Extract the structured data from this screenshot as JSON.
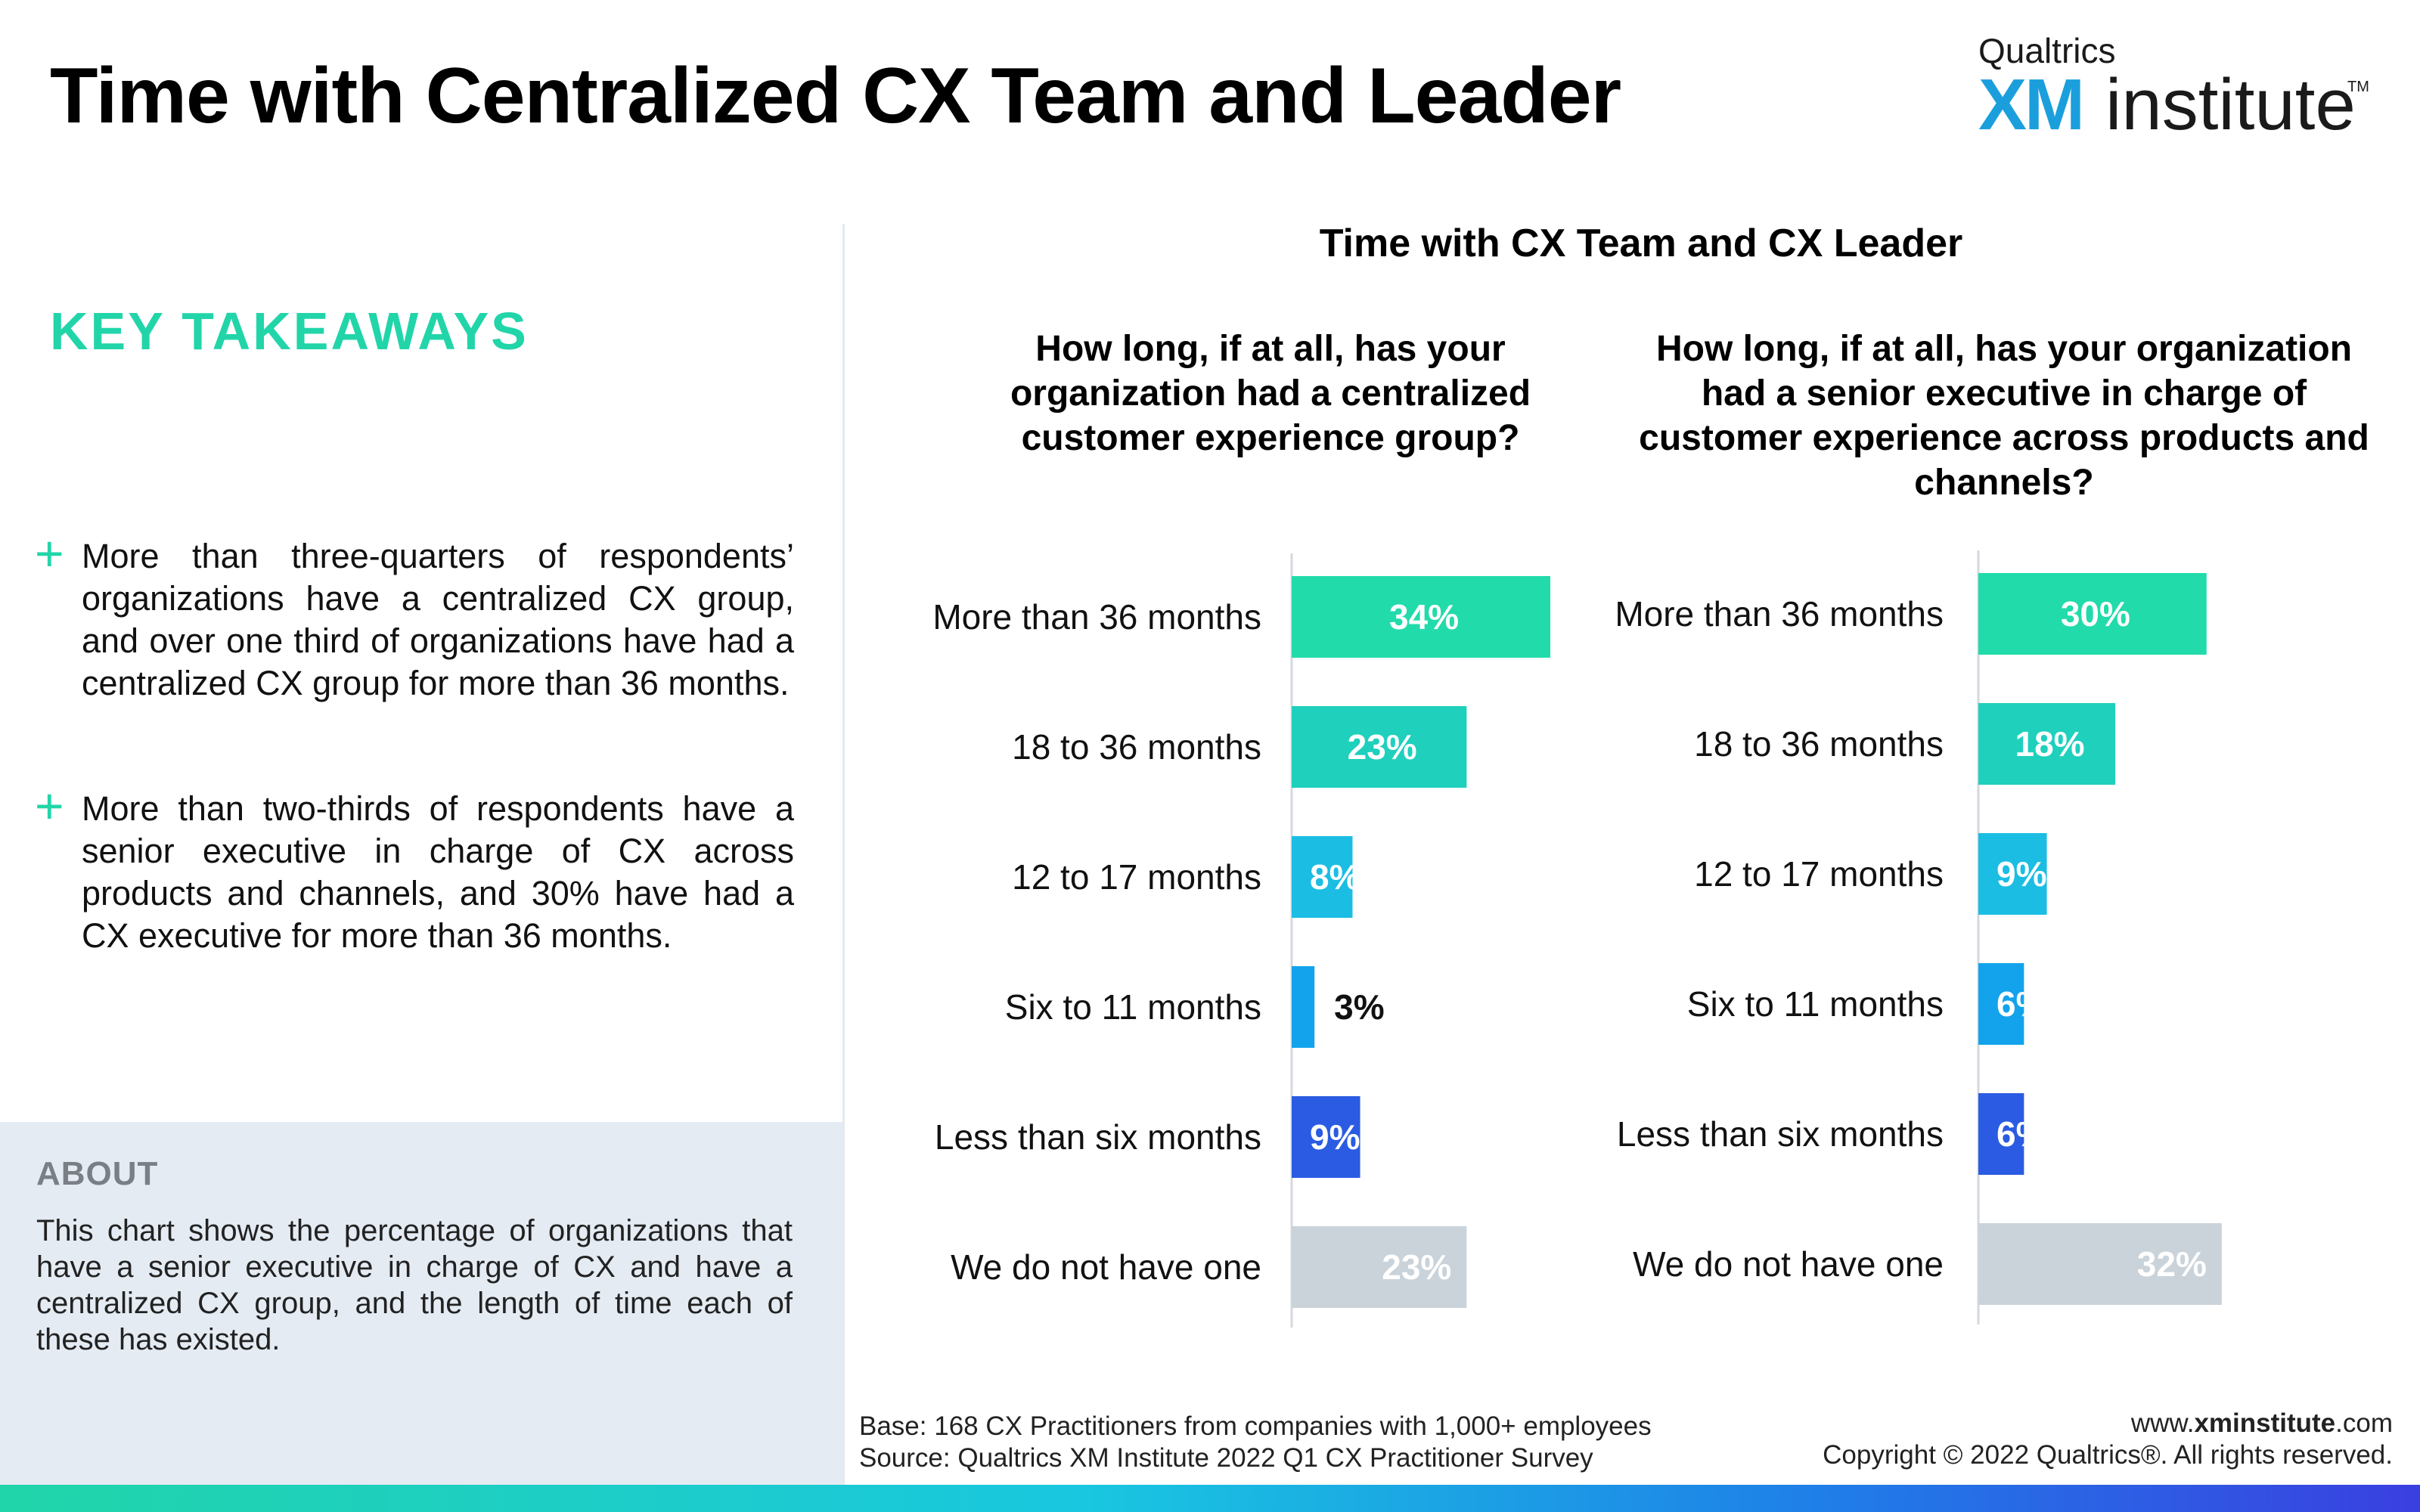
{
  "page": {
    "title": "Time with Centralized CX Team and Leader"
  },
  "logo": {
    "top": "Qualtrics",
    "xm": "XM",
    "institute": "institute",
    "tm": "TM"
  },
  "takeaways": {
    "title": "KEY TAKEAWAYS",
    "items": [
      "More than three-quarters of respondents’ organizations have a centralized CX group, and over one third of organizations have had a centralized CX group for more than 36 months.",
      "More than two-thirds of respondents have a senior executive in charge of CX across products and channels, and 30% have had a CX executive for more than 36 months."
    ]
  },
  "about": {
    "title": "ABOUT",
    "text": "This chart shows the percentage of organizations that have a senior executive in charge of CX and have a centralized CX group, and the length of time each of these has existed."
  },
  "chart_data": [
    {
      "type": "bar",
      "orientation": "horizontal",
      "title": "Time with CX Team and CX Leader",
      "question": "How long, if at all, has your organization had a centralized customer experience group?",
      "categories": [
        "More than 36 months",
        "18 to 36 months",
        "12 to 17 months",
        "Six to 11 months",
        "Less than six months",
        "We do not have one"
      ],
      "values": [
        34,
        23,
        8,
        3,
        9,
        23
      ],
      "labels": [
        "34%",
        "23%",
        "8%",
        "3%",
        "9%",
        "23%"
      ],
      "colors": [
        "#22dbaa",
        "#1fd0bd",
        "#1bbde3",
        "#13a3ec",
        "#2a5be2",
        "#cad3da"
      ],
      "xlim": [
        0,
        34
      ]
    },
    {
      "type": "bar",
      "orientation": "horizontal",
      "title": "Time with CX Team and CX Leader",
      "question": "How long, if at all, has your organization had a senior executive in charge of customer experience across products and channels?",
      "categories": [
        "More than 36 months",
        "18 to 36 months",
        "12 to 17 months",
        "Six to 11 months",
        "Less than six months",
        "We do not have one"
      ],
      "values": [
        30,
        18,
        9,
        6,
        6,
        32
      ],
      "labels": [
        "30%",
        "18%",
        "9%",
        "6%",
        "6%",
        "32%"
      ],
      "colors": [
        "#22dbaa",
        "#1fd0bd",
        "#1bbde3",
        "#13a3ec",
        "#2a5be2",
        "#cad3da"
      ],
      "xlim": [
        0,
        34
      ]
    }
  ],
  "footer": {
    "base": "Base: 168 CX Practitioners from companies with 1,000+ employees",
    "source": "Source: Qualtrics XM Institute 2022 Q1 CX Practitioner Survey",
    "site_prefix": "www.",
    "site_bold": "xminstitute",
    "site_suffix": ".com",
    "copyright": "Copyright © 2022 Qualtrics®. All rights reserved."
  }
}
